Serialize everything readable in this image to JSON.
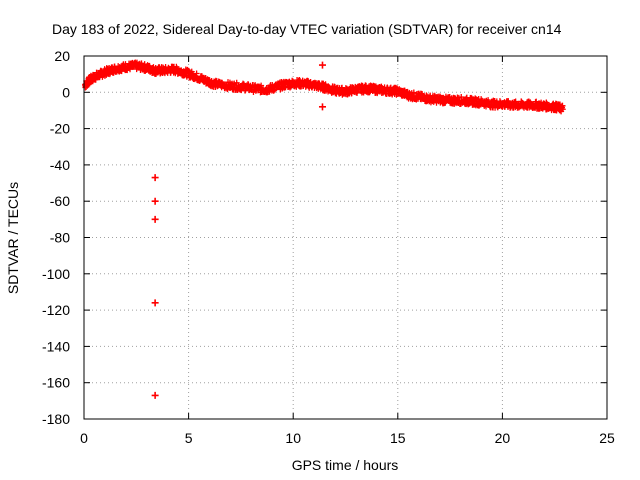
{
  "chart_data": {
    "type": "scatter",
    "title": "Day 183 of 2022, Sidereal Day-to-day VTEC variation (SDTVAR) for receiver cn14",
    "xlabel": "GPS time / hours",
    "ylabel": "SDTVAR / TECUs",
    "xlim": [
      0,
      25
    ],
    "ylim": [
      -180,
      20
    ],
    "xticks": [
      0,
      5,
      10,
      15,
      20,
      25
    ],
    "yticks": [
      20,
      0,
      -20,
      -40,
      -60,
      -80,
      -100,
      -120,
      -140,
      -160,
      -180
    ],
    "grid": true,
    "legend": "none",
    "marker": "+",
    "series_color": "#ff0000",
    "trend": [
      [
        0.05,
        4
      ],
      [
        0.3,
        7
      ],
      [
        0.6,
        9
      ],
      [
        1.0,
        11
      ],
      [
        1.5,
        13
      ],
      [
        2.0,
        14
      ],
      [
        2.5,
        14.5
      ],
      [
        3.0,
        13.5
      ],
      [
        3.4,
        12
      ],
      [
        3.8,
        12
      ],
      [
        4.3,
        12.5
      ],
      [
        4.8,
        11
      ],
      [
        5.3,
        9
      ],
      [
        5.8,
        6.5
      ],
      [
        6.3,
        4.5
      ],
      [
        7.0,
        3.5
      ],
      [
        7.6,
        3
      ],
      [
        8.2,
        2
      ],
      [
        8.7,
        1.5
      ],
      [
        9.2,
        3
      ],
      [
        9.7,
        4.5
      ],
      [
        10.2,
        5
      ],
      [
        10.7,
        4.5
      ],
      [
        11.2,
        3.5
      ],
      [
        11.6,
        2.5
      ],
      [
        12.0,
        1
      ],
      [
        12.5,
        0.5
      ],
      [
        13.0,
        1.5
      ],
      [
        13.5,
        2
      ],
      [
        14.0,
        1.5
      ],
      [
        14.5,
        1
      ],
      [
        15.0,
        0.5
      ],
      [
        15.5,
        -1.5
      ],
      [
        16.0,
        -2.5
      ],
      [
        16.5,
        -3.5
      ],
      [
        17.0,
        -4
      ],
      [
        17.5,
        -4.5
      ],
      [
        18.0,
        -4.5
      ],
      [
        18.5,
        -5
      ],
      [
        19.0,
        -5.5
      ],
      [
        19.5,
        -6.5
      ],
      [
        20.0,
        -6.5
      ],
      [
        20.5,
        -7
      ],
      [
        21.0,
        -7
      ],
      [
        21.5,
        -7
      ],
      [
        22.0,
        -7.5
      ],
      [
        22.5,
        -8
      ],
      [
        22.9,
        -9
      ]
    ],
    "outliers": [
      {
        "x": 3.4,
        "y": -47
      },
      {
        "x": 3.4,
        "y": -60
      },
      {
        "x": 3.4,
        "y": -70
      },
      {
        "x": 3.4,
        "y": -116
      },
      {
        "x": 3.4,
        "y": -167
      },
      {
        "x": 11.4,
        "y": 15
      },
      {
        "x": 11.4,
        "y": -8
      }
    ]
  }
}
